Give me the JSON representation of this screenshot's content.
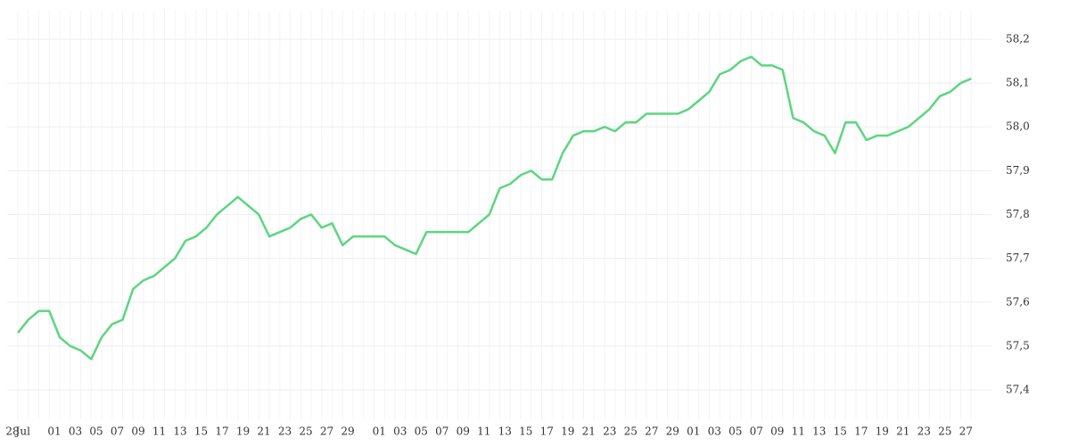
{
  "chart_data": {
    "type": "line",
    "categories": [
      "28",
      "Jul",
      null,
      null,
      "01",
      null,
      "03",
      null,
      "05",
      null,
      "07",
      null,
      "09",
      null,
      "11",
      null,
      "13",
      null,
      "15",
      null,
      "17",
      null,
      "19",
      null,
      "21",
      null,
      "23",
      null,
      "25",
      null,
      "27",
      null,
      "29",
      null,
      null,
      "01",
      null,
      "03",
      null,
      "05",
      null,
      "07",
      null,
      "09",
      null,
      "11",
      null,
      "13",
      null,
      "15",
      null,
      "17",
      null,
      "19",
      null,
      "21",
      null,
      "23",
      null,
      "25",
      null,
      "27",
      null,
      "29",
      null,
      "01",
      null,
      "03",
      null,
      "05",
      null,
      "07",
      null,
      "09",
      null,
      "11",
      null,
      "13",
      null,
      "15",
      null,
      "17",
      null,
      "19",
      null,
      "21",
      null,
      "23",
      null,
      "25",
      null,
      "27"
    ],
    "series": [
      {
        "color": "#5cd67f",
        "values": [
          57.53,
          57.56,
          57.58,
          57.58,
          57.52,
          57.5,
          57.49,
          57.47,
          57.52,
          57.55,
          57.56,
          57.63,
          57.65,
          57.66,
          57.68,
          57.7,
          57.74,
          57.75,
          57.77,
          57.8,
          57.82,
          57.84,
          57.82,
          57.8,
          57.75,
          57.76,
          57.77,
          57.79,
          57.8,
          57.77,
          57.78,
          57.73,
          57.75,
          57.75,
          57.75,
          57.75,
          57.73,
          57.72,
          57.71,
          57.76,
          57.76,
          57.76,
          57.76,
          57.76,
          57.78,
          57.8,
          57.86,
          57.87,
          57.89,
          57.9,
          57.88,
          57.88,
          57.94,
          57.98,
          57.99,
          57.99,
          58.0,
          57.99,
          58.01,
          58.01,
          58.03,
          58.03,
          58.03,
          58.03,
          58.04,
          58.06,
          58.08,
          58.12,
          58.13,
          58.15,
          58.16,
          58.14,
          58.14,
          58.13,
          58.02,
          58.01,
          57.99,
          57.98,
          57.94,
          58.01,
          58.01,
          57.97,
          57.98,
          57.98,
          57.99,
          58.0,
          58.02,
          58.04,
          58.07,
          58.08,
          58.1,
          58.11
        ]
      }
    ],
    "ylim": [
      57.333,
      58.265
    ],
    "yticks": [
      {
        "value": 57.4,
        "label": "57,4"
      },
      {
        "value": 57.5,
        "label": "57,5"
      },
      {
        "value": 57.6,
        "label": "57,6"
      },
      {
        "value": 57.7,
        "label": "57,7"
      },
      {
        "value": 57.8,
        "label": "57,8"
      },
      {
        "value": 57.9,
        "label": "57,9"
      },
      {
        "value": 58.0,
        "label": "58,0"
      },
      {
        "value": 58.1,
        "label": "58,1"
      },
      {
        "value": 58.2,
        "label": "58,2"
      }
    ],
    "grid": true
  }
}
